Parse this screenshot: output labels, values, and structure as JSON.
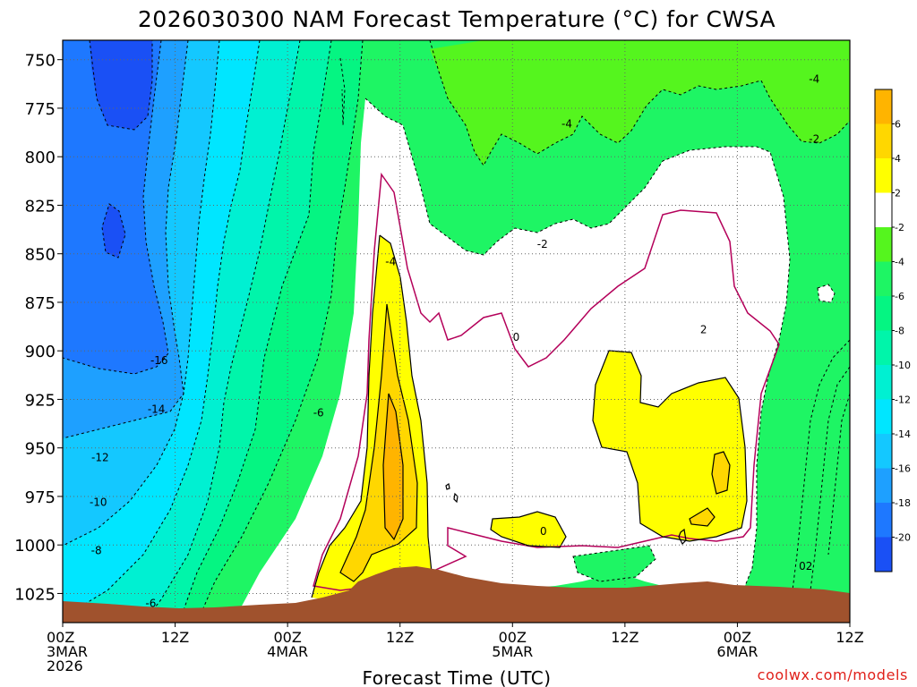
{
  "chart_data": {
    "type": "heatmap",
    "title": "2026030300 NAM Forecast Temperature (°C) for CWSA",
    "xlabel": "Forecast Time (UTC)",
    "ylabel": "",
    "y_axis": {
      "unit": "hPa",
      "range": [
        740,
        1040
      ],
      "inverted": true,
      "ticks": [
        750,
        775,
        800,
        825,
        850,
        875,
        900,
        925,
        950,
        975,
        1000,
        1025
      ]
    },
    "x_axis": {
      "unit": "hours since 2026-03-03 00Z",
      "range": [
        0,
        84
      ],
      "ticks": [
        {
          "hour": 0,
          "lines": [
            "00Z",
            "3MAR",
            "2026"
          ]
        },
        {
          "hour": 12,
          "lines": [
            "12Z"
          ]
        },
        {
          "hour": 24,
          "lines": [
            "00Z",
            "4MAR"
          ]
        },
        {
          "hour": 36,
          "lines": [
            "12Z"
          ]
        },
        {
          "hour": 48,
          "lines": [
            "00Z",
            "5MAR"
          ]
        },
        {
          "hour": 60,
          "lines": [
            "12Z"
          ]
        },
        {
          "hour": 72,
          "lines": [
            "00Z",
            "6MAR"
          ]
        },
        {
          "hour": 84,
          "lines": [
            "12Z"
          ]
        }
      ]
    },
    "grid": true,
    "colorbar": {
      "placement": "right",
      "levels": [
        -20,
        -18,
        -16,
        -14,
        -12,
        -10,
        -8,
        -6,
        -4,
        -2,
        2,
        4,
        6
      ],
      "level_labels": [
        "-20",
        "-18",
        "-16",
        "-14",
        "-12",
        "-10",
        "-8",
        "-6",
        "-4",
        "-2",
        "2",
        "4",
        "6"
      ],
      "colors": [
        "#1a50f5",
        "#1e78ff",
        "#1ea0ff",
        "#14c8ff",
        "#00e6ff",
        "#00f0d2",
        "#00f5aa",
        "#05f582",
        "#1ef564",
        "#55f51e",
        "#ffffff",
        "#ffff00",
        "#ffd700",
        "#ffb400"
      ]
    },
    "contour_labels": [
      {
        "text": "-4",
        "hour": 35.0,
        "p": 854
      },
      {
        "text": "-4",
        "hour": 53.8,
        "p": 783
      },
      {
        "text": "-4",
        "hour": 80.2,
        "p": 760
      },
      {
        "text": "-2",
        "hour": 80.2,
        "p": 791
      },
      {
        "text": "-2",
        "hour": 51.2,
        "p": 845
      },
      {
        "text": "0",
        "hour": 48.4,
        "p": 893
      },
      {
        "text": "2",
        "hour": 68.4,
        "p": 889
      },
      {
        "text": "-16",
        "hour": 10.3,
        "p": 905
      },
      {
        "text": "-14",
        "hour": 10.0,
        "p": 930
      },
      {
        "text": "-6",
        "hour": 27.3,
        "p": 932
      },
      {
        "text": "-12",
        "hour": 4.0,
        "p": 955
      },
      {
        "text": "-10",
        "hour": 3.8,
        "p": 978
      },
      {
        "text": "-8",
        "hour": 3.6,
        "p": 1003
      },
      {
        "text": "-6",
        "hour": 9.4,
        "p": 1030
      },
      {
        "text": "0",
        "hour": 51.3,
        "p": 993
      },
      {
        "text": "02",
        "hour": 79.3,
        "p": 1011
      }
    ]
  },
  "credit": "coolwx.com/models"
}
